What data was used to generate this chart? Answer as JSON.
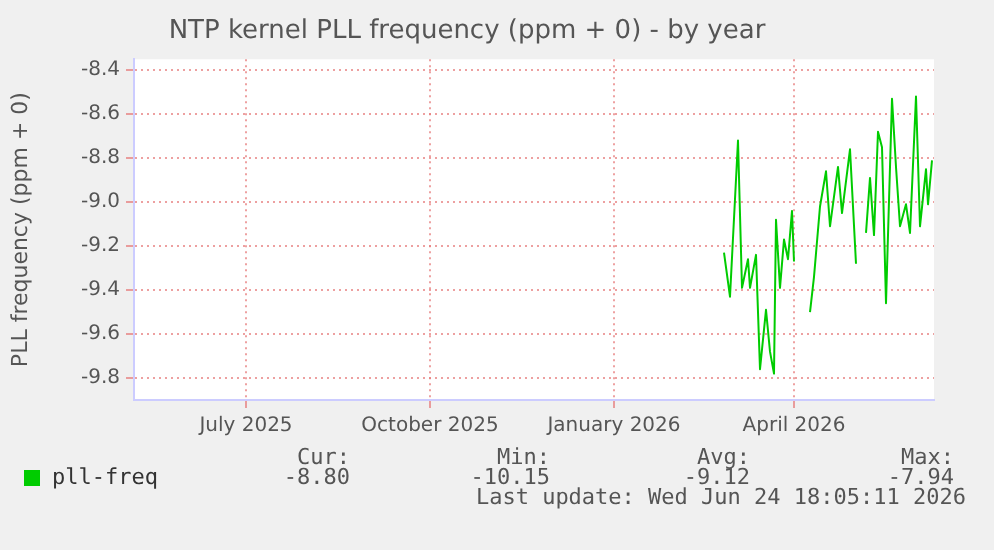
{
  "chart_data": {
    "type": "line",
    "title": "NTP kernel PLL frequency (ppm + 0) - by year",
    "ylabel": "PLL frequency (ppm + 0)",
    "x": [
      "2026-03-11",
      "2026-03-14",
      "2026-03-18",
      "2026-03-20",
      "2026-03-23",
      "2026-03-24",
      "2026-03-27",
      "2026-03-29",
      "2026-04-01",
      "2026-04-03",
      "2026-04-05",
      "2026-04-06",
      "2026-04-08",
      "2026-04-10",
      "2026-04-12",
      "2026-04-14",
      "2026-04-15",
      "2026-04-19",
      "2026-04-23",
      "2026-04-25",
      "2026-04-28",
      "2026-05-01",
      "2026-05-03",
      "2026-05-07",
      "2026-05-09",
      "2026-05-13",
      "2026-05-16",
      "2026-05-18",
      "2026-05-21",
      "2026-05-23",
      "2026-05-25",
      "2026-05-27",
      "2026-05-29",
      "2026-05-31",
      "2026-06-03",
      "2026-06-05",
      "2026-06-07",
      "2026-06-10",
      "2026-06-12",
      "2026-06-15",
      "2026-06-17",
      "2026-06-20",
      "2026-06-21",
      "2026-06-23"
    ],
    "series": [
      {
        "name": "pll-freq",
        "color": "#00cc00",
        "values": [
          -9.23,
          -9.43,
          -8.72,
          -9.39,
          -9.26,
          -9.39,
          -9.24,
          -9.76,
          -9.49,
          -9.68,
          -9.78,
          -9.08,
          -9.39,
          -9.17,
          -9.26,
          -9.04,
          -9.27,
          null,
          -9.5,
          -9.34,
          -9.02,
          -8.86,
          -9.11,
          -8.84,
          -9.05,
          -8.76,
          -9.28,
          null,
          -9.14,
          -8.89,
          -9.15,
          -8.68,
          -8.75,
          -9.46,
          -8.53,
          -8.84,
          -9.11,
          -9.01,
          -9.14,
          -8.52,
          -9.11,
          -8.85,
          -9.01,
          -8.81
        ]
      }
    ],
    "xlim": [
      "2025-05-20",
      "2026-06-24"
    ],
    "xticks": [
      {
        "value": "2025-07-15",
        "label": "July 2025"
      },
      {
        "value": "2025-10-15",
        "label": "October 2025"
      },
      {
        "value": "2026-01-15",
        "label": "January 2026"
      },
      {
        "value": "2026-04-15",
        "label": "April 2026"
      }
    ],
    "ylim": [
      -9.9,
      -8.35
    ],
    "yticks": [
      {
        "value": -9.8,
        "label": "-9.8"
      },
      {
        "value": -9.6,
        "label": "-9.6"
      },
      {
        "value": -9.4,
        "label": "-9.4"
      },
      {
        "value": -9.2,
        "label": "-9.2"
      },
      {
        "value": -9.0,
        "label": "-9.0"
      },
      {
        "value": -8.8,
        "label": "-8.8"
      },
      {
        "value": -8.6,
        "label": "-8.6"
      },
      {
        "value": -8.4,
        "label": "-8.4"
      }
    ],
    "grid": true,
    "legend": "bottom left",
    "marker": "none",
    "line_style": "solid",
    "annotations": [
      "Cur:",
      "Min:",
      "Avg:",
      "Max:",
      "-8.80",
      "-10.15",
      "-9.12",
      "-7.94",
      "Last update: Wed Jun 24 18:05:11 2026"
    ]
  }
}
